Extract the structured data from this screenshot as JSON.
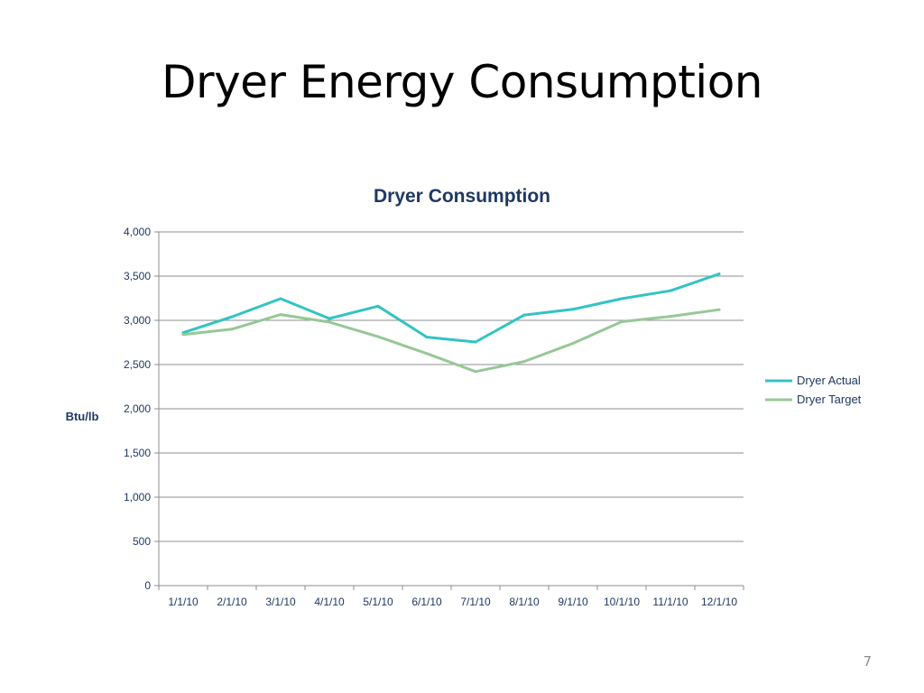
{
  "slide": {
    "title": "Dryer Energy Consumption",
    "page_number": "7"
  },
  "chart_data": {
    "type": "line",
    "title": "Dryer Consumption",
    "xlabel": "",
    "ylabel": "Btu/lb",
    "categories": [
      "1/1/10",
      "2/1/10",
      "3/1/10",
      "4/1/10",
      "5/1/10",
      "6/1/10",
      "7/1/10",
      "8/1/10",
      "9/1/10",
      "10/1/10",
      "11/1/10",
      "12/1/10"
    ],
    "y_ticks": [
      "0",
      "500",
      "1,000",
      "1,500",
      "2,000",
      "2,500",
      "3,000",
      "3,500",
      "4,000"
    ],
    "ylim": [
      0,
      4000
    ],
    "grid": true,
    "legend_position": "right",
    "series": [
      {
        "name": "Dryer Actual",
        "color": "#33c3c3",
        "values": [
          2860,
          3040,
          3245,
          3020,
          3160,
          2810,
          2755,
          3060,
          3125,
          3245,
          3335,
          3525
        ]
      },
      {
        "name": "Dryer Target",
        "color": "#96c896",
        "values": [
          2840,
          2900,
          3065,
          2980,
          2815,
          2625,
          2420,
          2535,
          2740,
          2985,
          3045,
          3120
        ]
      }
    ]
  }
}
